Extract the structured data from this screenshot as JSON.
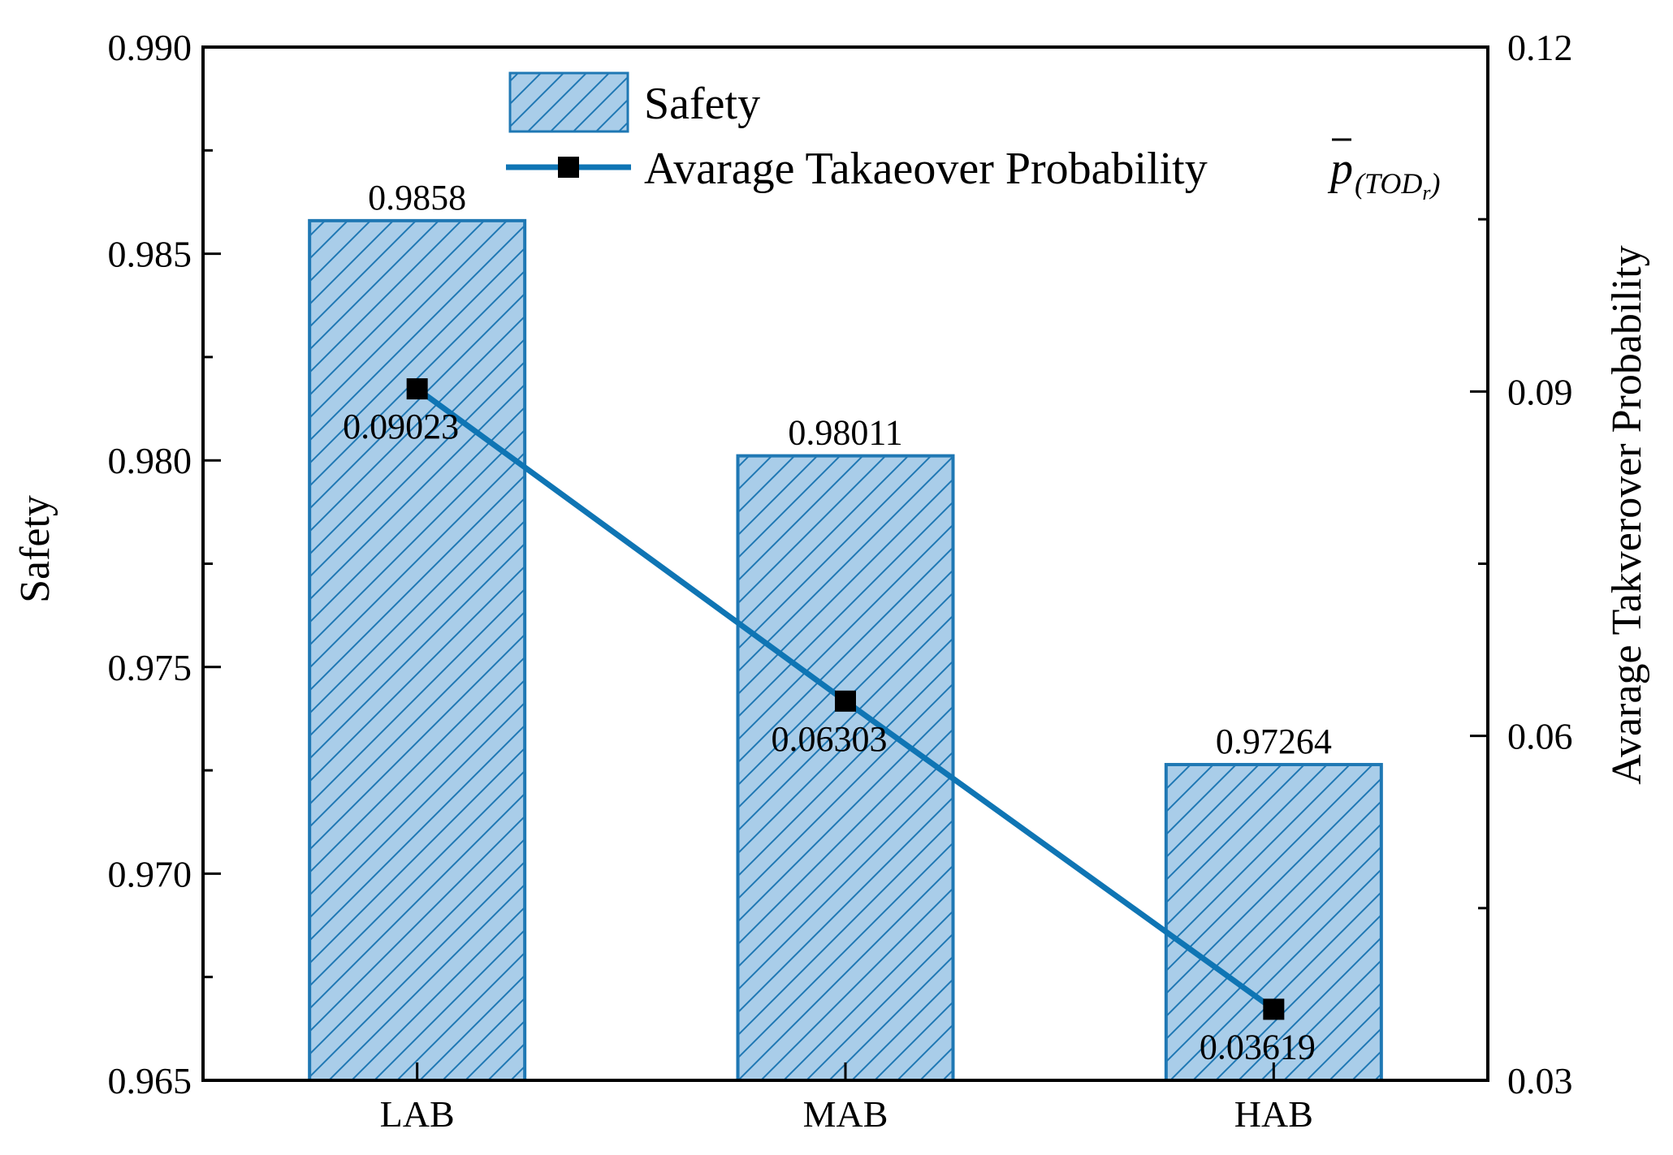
{
  "chart_data": {
    "type": "bar",
    "categories": [
      "LAB",
      "MAB",
      "HAB"
    ],
    "series": [
      {
        "name": "Safety",
        "kind": "bar",
        "axis": "left",
        "values": [
          0.9858,
          0.98011,
          0.97264
        ],
        "labels": [
          "0.9858",
          "0.98011",
          "0.97264"
        ],
        "color": "#1f78b4",
        "fill": "#a9cde9",
        "pattern": "diagonal-hatch"
      },
      {
        "name": "Avarage Takaeover Probability",
        "kind": "line",
        "axis": "right",
        "values": [
          0.09023,
          0.06303,
          0.03619
        ],
        "labels": [
          "0.09023",
          "0.06303",
          "0.03619"
        ],
        "color": "#0f75b4",
        "marker": "square",
        "marker_color": "#000000"
      }
    ],
    "legend_math": {
      "symbol": "p",
      "subscript_open": "(TOD",
      "subscript_sub": "r",
      "subscript_close": ")"
    },
    "ylabel": "Safety",
    "y2label": "Avarage Takverover Probability",
    "ylim": [
      0.965,
      0.99
    ],
    "y2lim": [
      0.03,
      0.12
    ],
    "yticks": [
      "0.965",
      "0.970",
      "0.975",
      "0.980",
      "0.985",
      "0.990"
    ],
    "y2ticks": [
      "0.03",
      "0.06",
      "0.09",
      "0.12"
    ],
    "legend_position": "top-center",
    "grid": false
  }
}
